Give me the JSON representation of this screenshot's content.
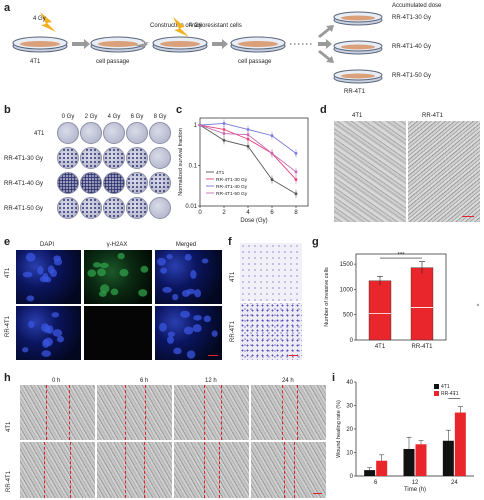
{
  "panel_labels": {
    "a": "a",
    "b": "b",
    "c": "c",
    "d": "d",
    "e": "e",
    "f": "f",
    "g": "g",
    "h": "h",
    "i": "i"
  },
  "panel_a": {
    "top_label": "Construction of radioresistant cells",
    "dose1": "4 Gy",
    "dose2": "4 Gy",
    "parent": "4T1",
    "passage1": "cell passage",
    "passage2": "cell passage",
    "accumulated_label": "Accumulated dose",
    "outputs": [
      "RR-4T1-30 Gy",
      "RR-4T1-40 Gy",
      "RR-4T1-50 Gy"
    ],
    "group_label": "RR-4T1"
  },
  "panel_b": {
    "doses": [
      "0 Gy",
      "2 Gy",
      "4 Gy",
      "6 Gy",
      "8 Gy"
    ],
    "rows": [
      "4T1",
      "RR-4T1-30 Gy",
      "RR-4T1-40 Gy",
      "RR-4T1-50 Gy"
    ]
  },
  "panel_d": {
    "labels": [
      "4T1",
      "RR-4T1"
    ]
  },
  "panel_e": {
    "cols": [
      "DAPI",
      "γ-H2AX",
      "Merged"
    ],
    "rows": [
      "4T1",
      "RR-4T1"
    ]
  },
  "panel_f": {
    "rows": [
      "4T1",
      "RR-4T1"
    ]
  },
  "panel_h": {
    "times": [
      "0 h",
      "6 h",
      "12 h",
      "24 h"
    ],
    "rows": [
      "4T1",
      "RR-4T1"
    ]
  },
  "chart_data": [
    {
      "panel": "c",
      "type": "line",
      "xlabel": "Dose (Gy)",
      "ylabel": "Normalized survival fraction",
      "log_y": true,
      "xlim": [
        0,
        9
      ],
      "ylim": [
        0.01,
        1.5
      ],
      "x": [
        0,
        2,
        4,
        6,
        8
      ],
      "xticks": [
        "0",
        "2",
        "4",
        "6",
        "8"
      ],
      "yticks": [
        "0.01",
        "0.1",
        "1"
      ],
      "legend_position": "bottom-left",
      "series": [
        {
          "name": "4T1",
          "color": "#555555",
          "values": [
            1.0,
            0.42,
            0.3,
            0.045,
            0.02
          ]
        },
        {
          "name": "RR-4T1-30 Gy",
          "color": "#e8457a",
          "values": [
            1.0,
            0.78,
            0.45,
            0.2,
            0.045
          ]
        },
        {
          "name": "RR-4T1-40 Gy",
          "color": "#7a78d8",
          "values": [
            1.0,
            1.1,
            0.78,
            0.55,
            0.2
          ]
        },
        {
          "name": "RR-4T1-50 Gy",
          "color": "#c76ab8",
          "values": [
            1.0,
            0.62,
            0.58,
            0.2,
            0.07
          ]
        }
      ]
    },
    {
      "panel": "g",
      "type": "bar",
      "ylabel": "Number of invasive cells",
      "categories": [
        "4T1",
        "RR-4T1"
      ],
      "values": [
        1170,
        1430
      ],
      "errors": [
        90,
        120
      ],
      "ylim": [
        0,
        1700
      ],
      "yticks": [
        "0",
        "500",
        "1000",
        "1500"
      ],
      "color": "#e8262b",
      "significance": "***"
    },
    {
      "panel": "i",
      "type": "bar",
      "xlabel": "Time (h)",
      "ylabel": "Wound healing rate (%)",
      "categories": [
        "6",
        "12",
        "24"
      ],
      "ylim": [
        0,
        40
      ],
      "yticks": [
        "0",
        "10",
        "20",
        "30",
        "40"
      ],
      "legend_position": "top-right",
      "series": [
        {
          "name": "4T1",
          "color": "#111111",
          "values": [
            2.5,
            11.5,
            15
          ],
          "errors": [
            1,
            5,
            4.5
          ]
        },
        {
          "name": "RR-4T1",
          "color": "#e8262b",
          "values": [
            6.5,
            13.5,
            27
          ],
          "errors": [
            2.5,
            1.5,
            2.5
          ]
        }
      ],
      "significance": "*"
    }
  ]
}
